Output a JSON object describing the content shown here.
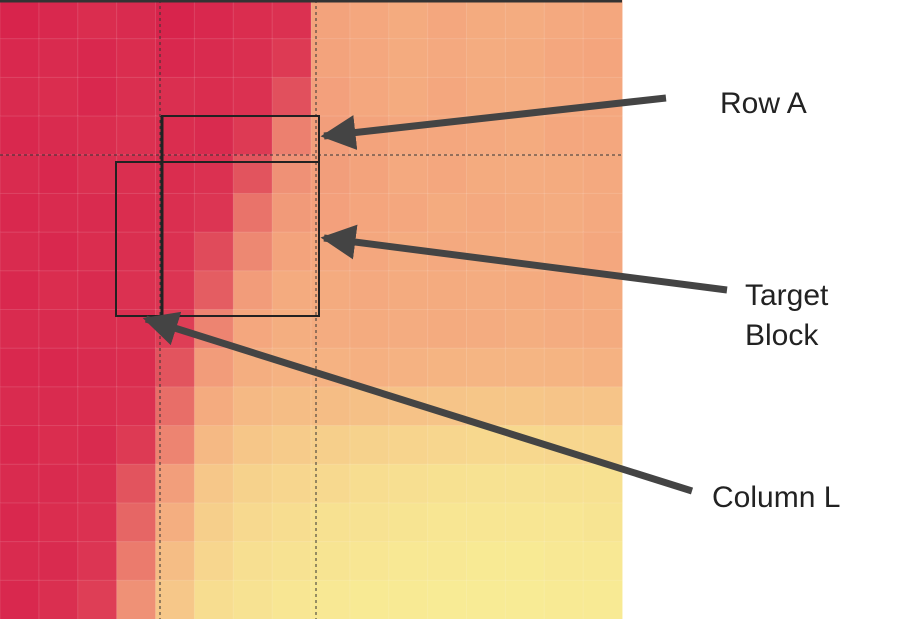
{
  "labels": {
    "row_a": "Row A",
    "target_line1": "Target",
    "target_line2": "Block",
    "column_l": "Column L"
  },
  "colors": {
    "hot": "#d8244c",
    "warm": "#f4a77e",
    "cool": "#f8ef96",
    "frame": "#222222",
    "arrow": "#444444",
    "top_border": "#333333"
  },
  "heatmap": {
    "rows": 16,
    "cols": 16,
    "level_scale": "0 = red (hot) ... 1 = yellow (cool)",
    "levels": [
      [
        0.0,
        0.02,
        0.04,
        0.03,
        0.0,
        0.02,
        0.04,
        0.06,
        0.58,
        0.6,
        0.62,
        0.6,
        0.62,
        0.63,
        0.61,
        0.6
      ],
      [
        0.02,
        0.03,
        0.02,
        0.04,
        0.02,
        0.03,
        0.05,
        0.1,
        0.58,
        0.6,
        0.62,
        0.61,
        0.63,
        0.62,
        0.6,
        0.59
      ],
      [
        0.03,
        0.04,
        0.02,
        0.05,
        0.05,
        0.04,
        0.06,
        0.2,
        0.57,
        0.6,
        0.62,
        0.6,
        0.62,
        0.63,
        0.61,
        0.6
      ],
      [
        0.02,
        0.03,
        0.04,
        0.06,
        0.04,
        0.03,
        0.1,
        0.42,
        0.56,
        0.58,
        0.6,
        0.6,
        0.61,
        0.62,
        0.6,
        0.6
      ],
      [
        0.03,
        0.02,
        0.05,
        0.05,
        0.04,
        0.06,
        0.22,
        0.5,
        0.56,
        0.58,
        0.61,
        0.6,
        0.62,
        0.63,
        0.62,
        0.61
      ],
      [
        0.02,
        0.03,
        0.03,
        0.04,
        0.05,
        0.08,
        0.36,
        0.54,
        0.57,
        0.59,
        0.6,
        0.62,
        0.61,
        0.62,
        0.63,
        0.61
      ],
      [
        0.03,
        0.02,
        0.04,
        0.05,
        0.06,
        0.18,
        0.46,
        0.58,
        0.6,
        0.6,
        0.62,
        0.61,
        0.62,
        0.63,
        0.62,
        0.6
      ],
      [
        0.02,
        0.04,
        0.03,
        0.06,
        0.08,
        0.26,
        0.55,
        0.62,
        0.62,
        0.61,
        0.62,
        0.62,
        0.63,
        0.62,
        0.61,
        0.62
      ],
      [
        0.03,
        0.03,
        0.04,
        0.05,
        0.12,
        0.44,
        0.6,
        0.64,
        0.63,
        0.62,
        0.63,
        0.62,
        0.63,
        0.64,
        0.63,
        0.62
      ],
      [
        0.02,
        0.02,
        0.03,
        0.04,
        0.22,
        0.55,
        0.64,
        0.66,
        0.66,
        0.65,
        0.66,
        0.67,
        0.68,
        0.68,
        0.67,
        0.66
      ],
      [
        0.03,
        0.03,
        0.04,
        0.06,
        0.34,
        0.62,
        0.7,
        0.72,
        0.72,
        0.74,
        0.75,
        0.76,
        0.77,
        0.77,
        0.76,
        0.76
      ],
      [
        0.02,
        0.04,
        0.03,
        0.1,
        0.44,
        0.7,
        0.77,
        0.8,
        0.82,
        0.84,
        0.85,
        0.86,
        0.87,
        0.87,
        0.86,
        0.86
      ],
      [
        0.03,
        0.03,
        0.05,
        0.22,
        0.56,
        0.78,
        0.84,
        0.86,
        0.88,
        0.9,
        0.91,
        0.92,
        0.93,
        0.93,
        0.92,
        0.92
      ],
      [
        0.02,
        0.04,
        0.06,
        0.3,
        0.64,
        0.82,
        0.88,
        0.9,
        0.92,
        0.93,
        0.94,
        0.95,
        0.95,
        0.95,
        0.95,
        0.94
      ],
      [
        0.03,
        0.03,
        0.08,
        0.4,
        0.72,
        0.86,
        0.91,
        0.93,
        0.94,
        0.95,
        0.96,
        0.96,
        0.97,
        0.97,
        0.96,
        0.96
      ],
      [
        0.02,
        0.05,
        0.12,
        0.5,
        0.78,
        0.9,
        0.93,
        0.95,
        0.96,
        0.97,
        0.97,
        0.98,
        0.98,
        0.98,
        0.97,
        0.97
      ]
    ]
  }
}
